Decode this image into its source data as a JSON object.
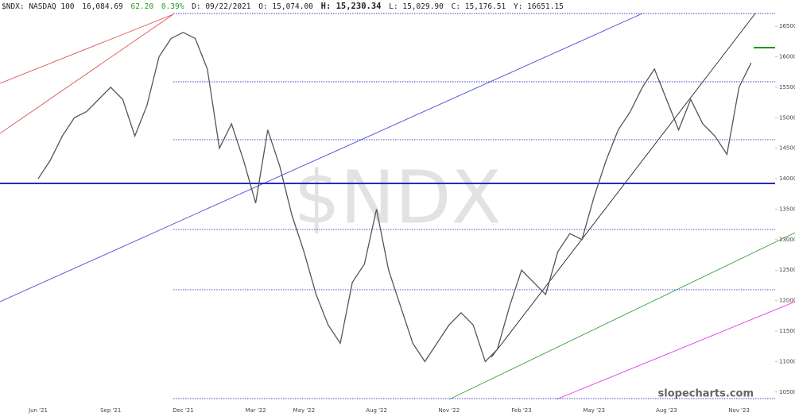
{
  "chart_data": {
    "type": "line",
    "header": {
      "symbol": "$NDX: NASDAQ 100",
      "last": "16,084.69",
      "change": "62.20",
      "change_pct": "0.39%",
      "date": "D: 09/22/2021",
      "open": "O: 15,074.00",
      "high": "H: 15,230.34",
      "low": "L: 15,029.90",
      "close": "C: 15,176.51",
      "year": "Y:  16651.15"
    },
    "watermark": "$NDX",
    "brand": "slopecharts.com",
    "categories": [
      "Jun '21",
      null,
      null,
      null,
      null,
      null,
      "Sep '21",
      null,
      null,
      null,
      null,
      null,
      "Dec '21",
      null,
      null,
      null,
      null,
      null,
      "Mar '22",
      null,
      null,
      null,
      "May '22",
      null,
      null,
      null,
      null,
      null,
      "Aug '22",
      null,
      null,
      null,
      null,
      null,
      "Nov '22",
      null,
      null,
      null,
      null,
      null,
      "Feb '23",
      null,
      null,
      null,
      null,
      null,
      "May '23",
      null,
      null,
      null,
      null,
      null,
      "Aug '23",
      null,
      null,
      null,
      null,
      null,
      "Nov '23",
      null
    ],
    "series": [
      {
        "color": "#555555",
        "values": [
          14000,
          14300,
          14700,
          15000,
          15100,
          15300,
          15500,
          15300,
          14700,
          15200,
          16000,
          16300,
          16400,
          16300,
          15800,
          14500,
          14900,
          14300,
          13600,
          14800,
          14200,
          13400,
          12800,
          12100,
          11600,
          11300,
          12300,
          12600,
          13500,
          12500,
          11900,
          11300,
          11000,
          11300,
          11600,
          11800,
          11600,
          11000,
          11200,
          11900,
          12500,
          12300,
          12100,
          12800,
          13100,
          13000,
          13700,
          14300,
          14800,
          15100,
          15500,
          15800,
          15300,
          14800,
          15300,
          14900,
          14700,
          14400,
          15500,
          15900
        ]
      }
    ],
    "levels": [
      16710,
      15590,
      14640,
      13167,
      12178,
      10393
    ],
    "key_level": 13923,
    "ylim": [
      10380,
      16710
    ],
    "yticks": [
      10500,
      11000,
      11500,
      12000,
      12500,
      13000,
      13500,
      14000,
      14500,
      15000,
      15500,
      16000,
      16500
    ]
  }
}
